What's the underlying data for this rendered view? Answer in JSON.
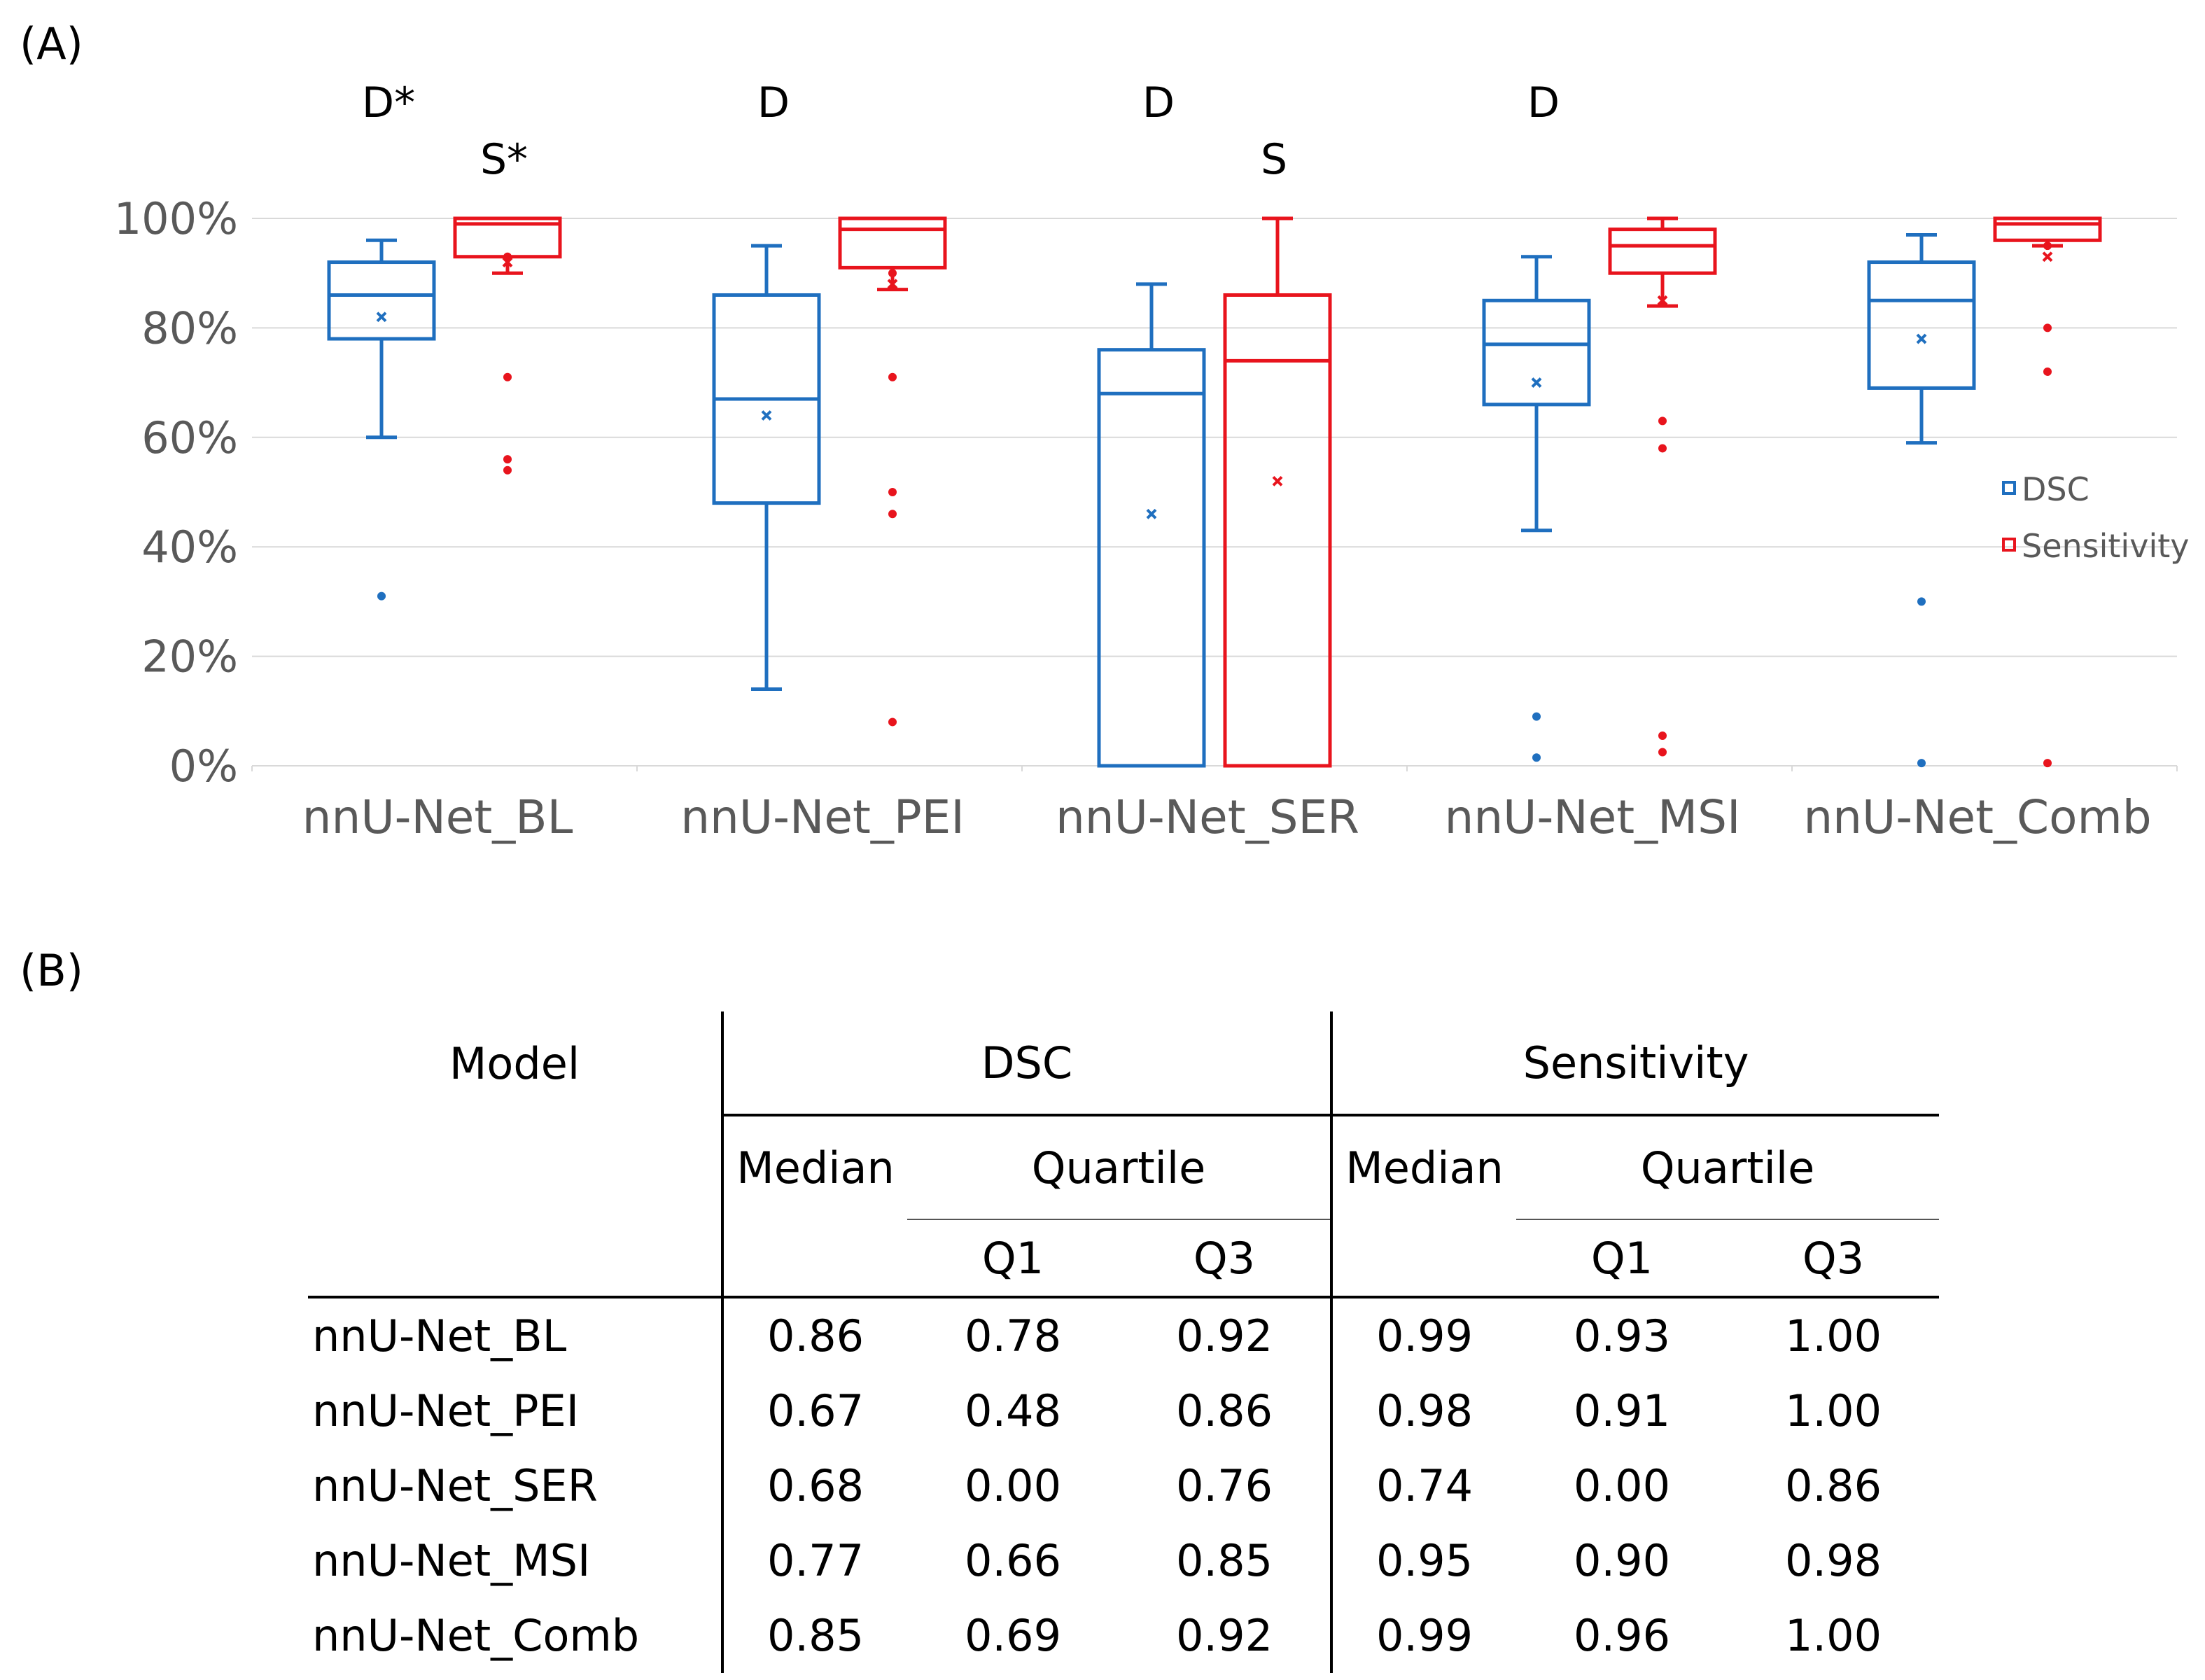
{
  "panels": {
    "a": "(A)",
    "b": "(B)"
  },
  "colors": {
    "dsc": "#1f6fbf",
    "sensitivity": "#e8141d",
    "grid": "#d9d9d9",
    "axis_text": "#595959"
  },
  "chart_data": {
    "type": "box",
    "ylim": [
      0,
      100
    ],
    "yticks": [
      0,
      20,
      40,
      60,
      80,
      100
    ],
    "ytick_labels": [
      "0%",
      "20%",
      "40%",
      "60%",
      "80%",
      "100%"
    ],
    "categories": [
      "nnU-Net_BL",
      "nnU-Net_PEI",
      "nnU-Net_SER",
      "nnU-Net_MSI",
      "nnU-Net_Comb"
    ],
    "legend": {
      "position": "right",
      "entries": [
        "DSC",
        "Sensitivity"
      ]
    },
    "significance": [
      {
        "category": "nnU-Net_BL",
        "dsc": "D*",
        "sensitivity": "S*"
      },
      {
        "category": "nnU-Net_PEI",
        "dsc": "D",
        "sensitivity": ""
      },
      {
        "category": "nnU-Net_SER",
        "dsc": "D",
        "sensitivity": "S"
      },
      {
        "category": "nnU-Net_MSI",
        "dsc": "D",
        "sensitivity": ""
      },
      {
        "category": "nnU-Net_Comb",
        "dsc": "",
        "sensitivity": ""
      }
    ],
    "series": [
      {
        "name": "DSC",
        "boxes": [
          {
            "whisker_low": 60,
            "q1": 78,
            "median": 86,
            "q3": 92,
            "whisker_high": 96,
            "mean": 82,
            "outliers": [
              31
            ]
          },
          {
            "whisker_low": 14,
            "q1": 48,
            "median": 67,
            "q3": 86,
            "whisker_high": 95,
            "mean": 64,
            "outliers": []
          },
          {
            "whisker_low": 0,
            "q1": 0,
            "median": 68,
            "q3": 76,
            "whisker_high": 88,
            "mean": 46,
            "outliers": []
          },
          {
            "whisker_low": 43,
            "q1": 66,
            "median": 77,
            "q3": 85,
            "whisker_high": 93,
            "mean": 70,
            "outliers": [
              9,
              1.5
            ]
          },
          {
            "whisker_low": 59,
            "q1": 69,
            "median": 85,
            "q3": 92,
            "whisker_high": 97,
            "mean": 78,
            "outliers": [
              30,
              0.5
            ]
          }
        ]
      },
      {
        "name": "Sensitivity",
        "boxes": [
          {
            "whisker_low": 90,
            "q1": 93,
            "median": 99,
            "q3": 100,
            "whisker_high": 100,
            "mean": 92,
            "outliers": [
              93,
              71,
              56,
              54
            ]
          },
          {
            "whisker_low": 87,
            "q1": 91,
            "median": 98,
            "q3": 100,
            "whisker_high": 100,
            "mean": 88,
            "outliers": [
              90,
              71,
              50,
              46,
              8
            ]
          },
          {
            "whisker_low": 0,
            "q1": 0,
            "median": 74,
            "q3": 86,
            "whisker_high": 100,
            "mean": 52,
            "outliers": []
          },
          {
            "whisker_low": 84,
            "q1": 90,
            "median": 95,
            "q3": 98,
            "whisker_high": 100,
            "mean": 85,
            "outliers": [
              63,
              58,
              5.5,
              2.5
            ]
          },
          {
            "whisker_low": 95,
            "q1": 96,
            "median": 99,
            "q3": 100,
            "whisker_high": 100,
            "mean": 93,
            "outliers": [
              95,
              80,
              72,
              0.5
            ]
          }
        ]
      }
    ]
  },
  "table": {
    "headers": {
      "model": "Model",
      "dsc": "DSC",
      "sensitivity": "Sensitivity",
      "median": "Median",
      "quartile": "Quartile",
      "q1": "Q1",
      "q3": "Q3"
    },
    "rows": [
      {
        "model": "nnU-Net_BL",
        "dsc_median": "0.86",
        "dsc_q1": "0.78",
        "dsc_q3": "0.92",
        "sens_median": "0.99",
        "sens_q1": "0.93",
        "sens_q3": "1.00"
      },
      {
        "model": "nnU-Net_PEI",
        "dsc_median": "0.67",
        "dsc_q1": "0.48",
        "dsc_q3": "0.86",
        "sens_median": "0.98",
        "sens_q1": "0.91",
        "sens_q3": "1.00"
      },
      {
        "model": "nnU-Net_SER",
        "dsc_median": "0.68",
        "dsc_q1": "0.00",
        "dsc_q3": "0.76",
        "sens_median": "0.74",
        "sens_q1": "0.00",
        "sens_q3": "0.86"
      },
      {
        "model": "nnU-Net_MSI",
        "dsc_median": "0.77",
        "dsc_q1": "0.66",
        "dsc_q3": "0.85",
        "sens_median": "0.95",
        "sens_q1": "0.90",
        "sens_q3": "0.98"
      },
      {
        "model": "nnU-Net_Comb",
        "dsc_median": "0.85",
        "dsc_q1": "0.69",
        "dsc_q3": "0.92",
        "sens_median": "0.99",
        "sens_q1": "0.96",
        "sens_q3": "1.00"
      }
    ]
  }
}
